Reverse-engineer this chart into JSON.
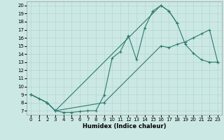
{
  "xlabel": "Humidex (Indice chaleur)",
  "bg_color": "#cce8e4",
  "line_color": "#2d7a6e",
  "grid_color": "#b0d8d0",
  "xlim": [
    -0.5,
    23.5
  ],
  "ylim": [
    6.5,
    20.5
  ],
  "xticks": [
    0,
    1,
    2,
    3,
    4,
    5,
    6,
    7,
    8,
    9,
    10,
    11,
    12,
    13,
    14,
    15,
    16,
    17,
    18,
    19,
    20,
    21,
    22,
    23
  ],
  "yticks": [
    7,
    8,
    9,
    10,
    11,
    12,
    13,
    14,
    15,
    16,
    17,
    18,
    19,
    20
  ],
  "curve1_x": [
    0,
    1,
    2,
    3,
    4,
    5,
    6,
    7,
    8,
    9,
    10,
    11,
    12,
    13,
    14,
    15,
    16,
    17,
    18
  ],
  "curve1_y": [
    9.0,
    8.5,
    8.0,
    7.0,
    6.8,
    6.8,
    6.9,
    7.0,
    7.0,
    8.9,
    13.5,
    14.3,
    16.3,
    13.3,
    17.2,
    19.3,
    20.0,
    19.3,
    17.8
  ],
  "curve2_x": [
    0,
    2,
    3,
    16,
    17,
    18,
    19,
    20,
    21,
    22,
    23
  ],
  "curve2_y": [
    9.0,
    8.0,
    7.0,
    20.0,
    19.3,
    17.8,
    15.2,
    14.1,
    13.3,
    13.0,
    13.0
  ],
  "curve3_x": [
    0,
    2,
    3,
    9,
    16,
    17,
    18,
    19,
    20,
    21,
    22,
    23
  ],
  "curve3_y": [
    9.0,
    8.0,
    7.0,
    8.0,
    15.0,
    14.8,
    15.2,
    15.5,
    16.0,
    16.5,
    17.0,
    13.0
  ]
}
